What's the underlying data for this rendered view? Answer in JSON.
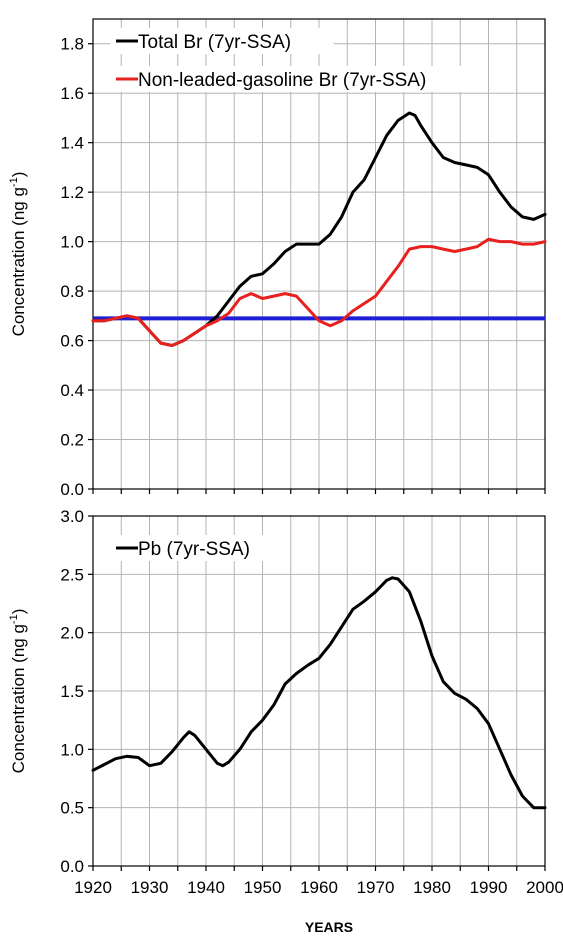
{
  "chart_data": [
    {
      "type": "line",
      "ylabel": "Concentration (ng g",
      "ylabel_sup": "-1",
      "ylabel_close": ")",
      "xlim": [
        1920,
        2000
      ],
      "ylim": [
        0,
        1.9
      ],
      "grid": true,
      "legend_position": "top-left",
      "yticks": [
        "0.0",
        "0.2",
        "0.4",
        "0.6",
        "0.8",
        "1.0",
        "1.2",
        "1.4",
        "1.6",
        "1.8"
      ],
      "baseline": {
        "y": 0.69,
        "color": "#1f1fd8"
      },
      "series": [
        {
          "name": "Total Br (7yr-SSA)",
          "color": "#000000",
          "x": [
            1920,
            1922,
            1924,
            1926,
            1928,
            1930,
            1932,
            1934,
            1936,
            1938,
            1940,
            1942,
            1944,
            1946,
            1948,
            1950,
            1952,
            1954,
            1956,
            1958,
            1960,
            1962,
            1964,
            1966,
            1968,
            1970,
            1972,
            1974,
            1976,
            1977,
            1978,
            1980,
            1982,
            1984,
            1986,
            1988,
            1990,
            1992,
            1994,
            1996,
            1998,
            2000
          ],
          "y": [
            0.68,
            0.68,
            0.69,
            0.7,
            0.69,
            0.64,
            0.59,
            0.58,
            0.6,
            0.63,
            0.66,
            0.7,
            0.76,
            0.82,
            0.86,
            0.87,
            0.91,
            0.96,
            0.99,
            0.99,
            0.99,
            1.03,
            1.1,
            1.2,
            1.25,
            1.34,
            1.43,
            1.49,
            1.52,
            1.51,
            1.47,
            1.4,
            1.34,
            1.32,
            1.31,
            1.3,
            1.27,
            1.2,
            1.14,
            1.1,
            1.09,
            1.11
          ]
        },
        {
          "name": "Non-leaded-gasoline Br (7yr-SSA)",
          "color": "#e8201e",
          "x": [
            1920,
            1922,
            1924,
            1926,
            1928,
            1930,
            1932,
            1934,
            1936,
            1938,
            1940,
            1942,
            1944,
            1946,
            1948,
            1950,
            1952,
            1954,
            1956,
            1958,
            1960,
            1962,
            1964,
            1966,
            1968,
            1970,
            1972,
            1974,
            1976,
            1978,
            1980,
            1982,
            1984,
            1986,
            1988,
            1990,
            1992,
            1994,
            1996,
            1998,
            2000
          ],
          "y": [
            0.68,
            0.68,
            0.69,
            0.7,
            0.69,
            0.64,
            0.59,
            0.58,
            0.6,
            0.63,
            0.66,
            0.68,
            0.71,
            0.77,
            0.79,
            0.77,
            0.78,
            0.79,
            0.78,
            0.73,
            0.68,
            0.66,
            0.68,
            0.72,
            0.75,
            0.78,
            0.84,
            0.9,
            0.97,
            0.98,
            0.98,
            0.97,
            0.96,
            0.97,
            0.98,
            1.01,
            1.0,
            1.0,
            0.99,
            0.99,
            1.0
          ]
        }
      ]
    },
    {
      "type": "line",
      "ylabel": "Concentration (ng g",
      "ylabel_sup": "-1",
      "ylabel_close": ")",
      "xlabel": "YEARS",
      "xlim": [
        1920,
        2000
      ],
      "ylim": [
        0,
        3.0
      ],
      "grid": true,
      "legend_position": "top-left",
      "xticks": [
        "1920",
        "1930",
        "1940",
        "1950",
        "1960",
        "1970",
        "1980",
        "1990",
        "2000"
      ],
      "yticks": [
        "0.0",
        "0.5",
        "1.0",
        "1.5",
        "2.0",
        "2.5",
        "3.0"
      ],
      "series": [
        {
          "name": "Pb (7yr-SSA)",
          "color": "#000000",
          "x": [
            1920,
            1922,
            1924,
            1926,
            1928,
            1930,
            1932,
            1934,
            1936,
            1937,
            1938,
            1940,
            1942,
            1943,
            1944,
            1946,
            1948,
            1950,
            1952,
            1954,
            1956,
            1958,
            1960,
            1962,
            1964,
            1966,
            1968,
            1970,
            1972,
            1973,
            1974,
            1976,
            1978,
            1980,
            1982,
            1984,
            1986,
            1988,
            1990,
            1992,
            1994,
            1996,
            1998,
            2000
          ],
          "y": [
            0.82,
            0.87,
            0.92,
            0.94,
            0.93,
            0.86,
            0.88,
            0.98,
            1.1,
            1.15,
            1.12,
            1.0,
            0.88,
            0.86,
            0.89,
            1.0,
            1.15,
            1.25,
            1.38,
            1.56,
            1.65,
            1.72,
            1.78,
            1.9,
            2.05,
            2.2,
            2.27,
            2.35,
            2.45,
            2.47,
            2.46,
            2.35,
            2.1,
            1.8,
            1.58,
            1.48,
            1.43,
            1.35,
            1.22,
            1.0,
            0.78,
            0.6,
            0.5,
            0.5
          ]
        }
      ]
    }
  ]
}
